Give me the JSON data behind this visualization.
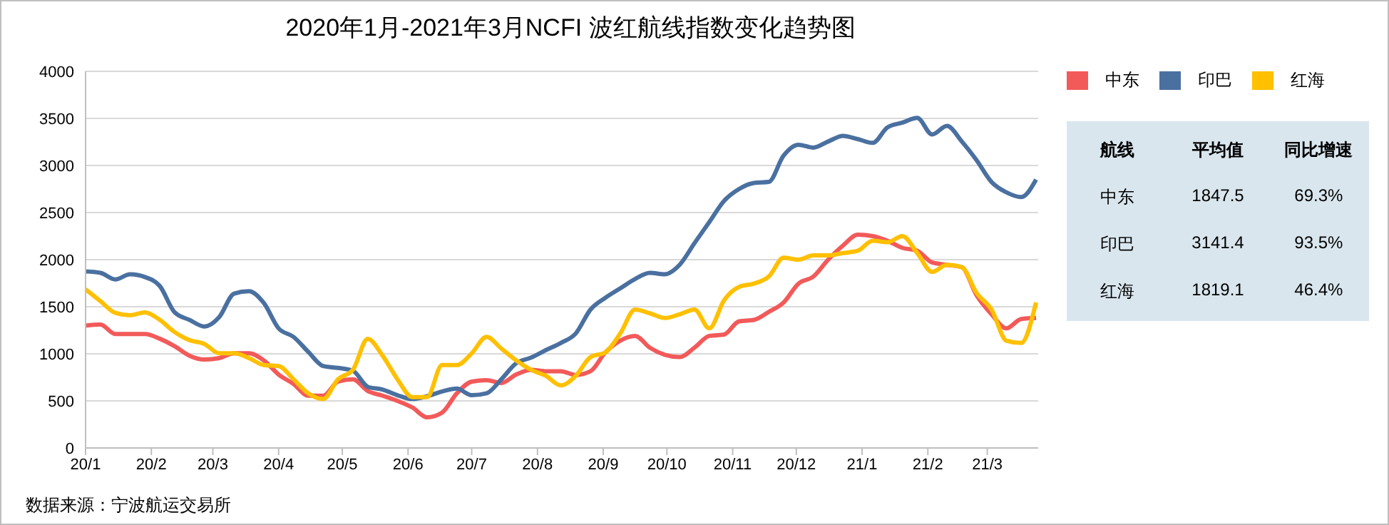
{
  "chart_data": {
    "type": "line",
    "title": "2020年1月-2021年3月NCFI 波红航线指数变化趋势图",
    "x": [
      "2020-01-01",
      "2020-01-08",
      "2020-01-15",
      "2020-01-22",
      "2020-01-29",
      "2020-02-05",
      "2020-02-12",
      "2020-02-19",
      "2020-02-26",
      "2020-03-04",
      "2020-03-11",
      "2020-03-18",
      "2020-03-25",
      "2020-04-01",
      "2020-04-08",
      "2020-04-15",
      "2020-04-22",
      "2020-04-29",
      "2020-05-06",
      "2020-05-13",
      "2020-05-20",
      "2020-05-27",
      "2020-06-03",
      "2020-06-10",
      "2020-06-17",
      "2020-06-24",
      "2020-07-01",
      "2020-07-08",
      "2020-07-15",
      "2020-07-22",
      "2020-07-29",
      "2020-08-05",
      "2020-08-12",
      "2020-08-19",
      "2020-08-26",
      "2020-09-02",
      "2020-09-09",
      "2020-09-16",
      "2020-09-23",
      "2020-09-30",
      "2020-10-07",
      "2020-10-14",
      "2020-10-21",
      "2020-10-28",
      "2020-11-04",
      "2020-11-11",
      "2020-11-18",
      "2020-11-25",
      "2020-12-02",
      "2020-12-09",
      "2020-12-16",
      "2020-12-23",
      "2020-12-30",
      "2021-01-06",
      "2021-01-13",
      "2021-01-20",
      "2021-01-27",
      "2021-02-03",
      "2021-02-10",
      "2021-02-17",
      "2021-02-24",
      "2021-03-03",
      "2021-03-10",
      "2021-03-17",
      "2021-03-24"
    ],
    "series": [
      {
        "name": "中东",
        "color": "#f25a5a",
        "values": [
          1300,
          1310,
          1210,
          1210,
          1210,
          1160,
          1080,
          980,
          940,
          955,
          1005,
          1005,
          930,
          780,
          680,
          555,
          555,
          705,
          730,
          605,
          555,
          500,
          430,
          325,
          375,
          580,
          705,
          720,
          690,
          780,
          830,
          815,
          815,
          775,
          815,
          1015,
          1140,
          1190,
          1065,
          990,
          965,
          1065,
          1190,
          1205,
          1345,
          1360,
          1445,
          1545,
          1745,
          1820,
          2000,
          2150,
          2265,
          2250,
          2200,
          2125,
          2095,
          1970,
          1945,
          1920,
          1620,
          1420,
          1270,
          1370,
          1380
        ]
      },
      {
        "name": "印巴",
        "color": "#4a70a0",
        "values": [
          1875,
          1860,
          1790,
          1845,
          1815,
          1720,
          1440,
          1360,
          1290,
          1390,
          1640,
          1665,
          1540,
          1270,
          1180,
          1020,
          870,
          850,
          820,
          650,
          620,
          560,
          520,
          550,
          600,
          630,
          560,
          580,
          730,
          900,
          960,
          1040,
          1115,
          1215,
          1470,
          1595,
          1695,
          1795,
          1860,
          1845,
          1945,
          2175,
          2400,
          2625,
          2750,
          2815,
          2825,
          3105,
          3220,
          3190,
          3255,
          3315,
          3280,
          3240,
          3405,
          3455,
          3505,
          3330,
          3420,
          3255,
          3055,
          2825,
          2715,
          2665,
          2850
        ]
      },
      {
        "name": "红海",
        "color": "#ffc000",
        "values": [
          1685,
          1560,
          1435,
          1410,
          1440,
          1360,
          1230,
          1145,
          1105,
          1005,
          1005,
          955,
          880,
          870,
          730,
          580,
          520,
          730,
          830,
          1160,
          980,
          730,
          540,
          540,
          880,
          880,
          1005,
          1180,
          1055,
          930,
          830,
          765,
          665,
          765,
          965,
          1015,
          1215,
          1470,
          1430,
          1380,
          1420,
          1470,
          1270,
          1570,
          1710,
          1745,
          1820,
          2020,
          2000,
          2045,
          2045,
          2070,
          2095,
          2200,
          2185,
          2250,
          2070,
          1870,
          1945,
          1920,
          1645,
          1470,
          1140,
          1115,
          1545
        ]
      }
    ],
    "xlim": [
      "2020-01-01",
      "2021-03-25"
    ],
    "xticks": [
      {
        "value": "2020-01-01",
        "label": "20/1"
      },
      {
        "value": "2020-02-01",
        "label": "20/2"
      },
      {
        "value": "2020-03-01",
        "label": "20/3"
      },
      {
        "value": "2020-04-01",
        "label": "20/4"
      },
      {
        "value": "2020-05-01",
        "label": "20/5"
      },
      {
        "value": "2020-06-01",
        "label": "20/6"
      },
      {
        "value": "2020-07-01",
        "label": "20/7"
      },
      {
        "value": "2020-08-01",
        "label": "20/8"
      },
      {
        "value": "2020-09-01",
        "label": "20/9"
      },
      {
        "value": "2020-10-01",
        "label": "20/10"
      },
      {
        "value": "2020-11-01",
        "label": "20/11"
      },
      {
        "value": "2020-12-01",
        "label": "20/12"
      },
      {
        "value": "2021-01-01",
        "label": "21/1"
      },
      {
        "value": "2021-02-01",
        "label": "21/2"
      },
      {
        "value": "2021-03-01",
        "label": "21/3"
      }
    ],
    "ylim": [
      0,
      4000
    ],
    "yticks": [
      0,
      500,
      1000,
      1500,
      2000,
      2500,
      3000,
      3500,
      4000
    ],
    "grid": "y",
    "legend": "top right",
    "marker": "none",
    "line_style": "solid",
    "annotations": [
      "航线",
      "平均值",
      "同比增速",
      "中东",
      "1847.5",
      "69.3%",
      "印巴",
      "3141.4",
      "93.5%",
      "红海",
      "1819.1",
      "46.4%",
      "数据来源：宁波航运交易所"
    ]
  }
}
